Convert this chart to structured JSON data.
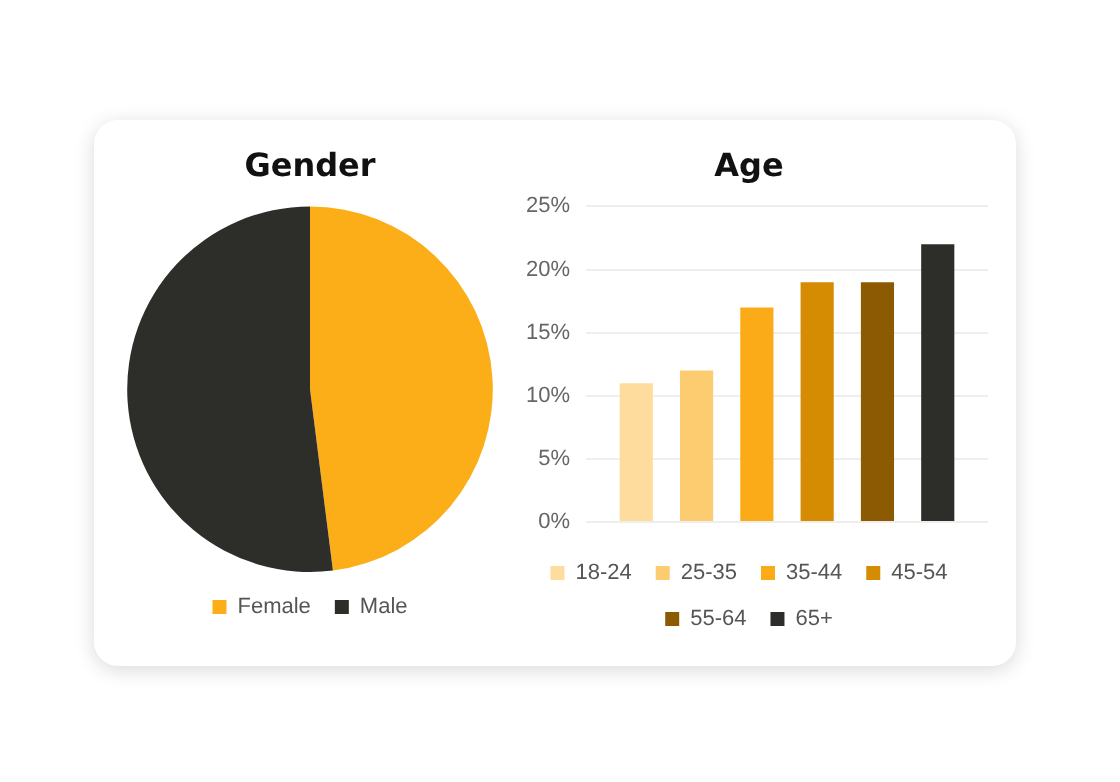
{
  "chart_data": [
    {
      "type": "pie",
      "title": "Gender",
      "categories": [
        "Female",
        "Male"
      ],
      "values": [
        48,
        52
      ],
      "colors": [
        "#fbae17",
        "#2d2d2a"
      ],
      "legend": "bottom"
    },
    {
      "type": "bar",
      "title": "Age",
      "categories": [
        null
      ],
      "series": [
        {
          "name": "18-24",
          "color": "#fedc9e",
          "values": [
            11
          ]
        },
        {
          "name": "25-35",
          "color": "#fdcb70",
          "values": [
            12
          ]
        },
        {
          "name": "35-44",
          "color": "#fbab18",
          "values": [
            17
          ]
        },
        {
          "name": "45-54",
          "color": "#d58b02",
          "values": [
            19
          ]
        },
        {
          "name": "55-64",
          "color": "#8c5a02",
          "values": [
            19
          ]
        },
        {
          "name": "65+",
          "color": "#2d2d2a",
          "values": [
            22
          ]
        }
      ],
      "ylim": [
        0,
        25
      ],
      "yticks": [
        {
          "value": 0,
          "label": "0%"
        },
        {
          "value": 5,
          "label": "5%"
        },
        {
          "value": 10,
          "label": "10%"
        },
        {
          "value": 15,
          "label": "15%"
        },
        {
          "value": 20,
          "label": "20%"
        },
        {
          "value": 25,
          "label": "25%"
        }
      ],
      "grid": "y",
      "legend": "bottom",
      "tick_labels": "y"
    }
  ]
}
